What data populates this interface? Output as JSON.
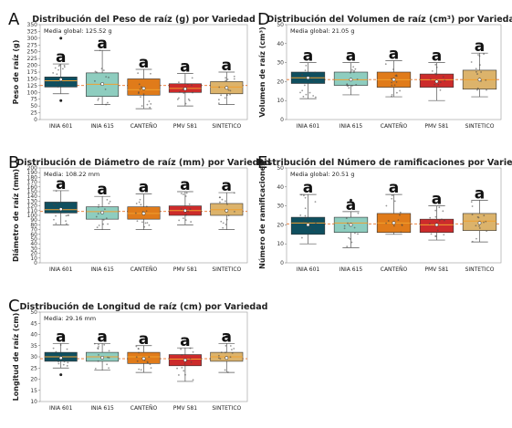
{
  "figure_colors": {
    "INIA 601": "#0f4f5f",
    "INIA 615": "#8ecdbf",
    "CANTEÑO": "#e07b1a",
    "PMV 581": "#cc2b2b",
    "SINTETICO": "#dcb36b",
    "reference_line": "#e8732a"
  },
  "chart_data": [
    {
      "type": "box",
      "panel_letter": "A",
      "title": "Distribución del Peso de raíz (g) por Variedad",
      "ylabel": "Peso de raíz (g)",
      "ylim": [
        0,
        350
      ],
      "yticks": [
        0,
        25,
        50,
        75,
        100,
        125,
        150,
        175,
        200,
        225,
        250,
        275,
        300,
        325,
        350
      ],
      "annotation": "Media global: 125.52 g",
      "reference_line": 125.52,
      "categories": [
        "INIA 601",
        "INIA 615",
        "CANTEÑO",
        "PMV 581",
        "SINTETICO"
      ],
      "series": [
        {
          "q1": 120,
          "median": 143,
          "q3": 157,
          "whisker_low": 95,
          "whisker_high": 205,
          "mean": 148,
          "sig": "a",
          "outliers": [
            300,
            70
          ]
        },
        {
          "q1": 85,
          "median": 130,
          "q3": 172,
          "whisker_low": 55,
          "whisker_high": 255,
          "mean": 131,
          "sig": "a",
          "outliers": []
        },
        {
          "q1": 90,
          "median": 110,
          "q3": 150,
          "whisker_low": 40,
          "whisker_high": 185,
          "mean": 115,
          "sig": "a",
          "outliers": []
        },
        {
          "q1": 100,
          "median": 115,
          "q3": 132,
          "whisker_low": 50,
          "whisker_high": 170,
          "mean": 113,
          "sig": "a",
          "outliers": []
        },
        {
          "q1": 95,
          "median": 120,
          "q3": 140,
          "whisker_low": 55,
          "whisker_high": 175,
          "mean": 117,
          "sig": "a",
          "outliers": []
        }
      ]
    },
    {
      "type": "box",
      "panel_letter": "B",
      "title": "Distribución de Diámetro de raíz (mm) por Variedad",
      "ylabel": "Diámetro de raíz (mm)",
      "ylim": [
        0,
        200
      ],
      "yticks": [
        0,
        10,
        20,
        30,
        40,
        50,
        60,
        70,
        80,
        90,
        100,
        110,
        120,
        130,
        140,
        150,
        160,
        170,
        180,
        190,
        200
      ],
      "annotation": "Media: 108.22 mm",
      "reference_line": 108.22,
      "categories": [
        "INIA 601",
        "INIA 615",
        "CANTEÑO",
        "PMV 581",
        "SINTETICO"
      ],
      "series": [
        {
          "q1": 105,
          "median": 112,
          "q3": 128,
          "whisker_low": 80,
          "whisker_high": 152,
          "mean": 113,
          "sig": "a",
          "outliers": []
        },
        {
          "q1": 92,
          "median": 108,
          "q3": 118,
          "whisker_low": 70,
          "whisker_high": 140,
          "mean": 106,
          "sig": "a",
          "outliers": []
        },
        {
          "q1": 92,
          "median": 104,
          "q3": 118,
          "whisker_low": 70,
          "whisker_high": 145,
          "mean": 104,
          "sig": "a",
          "outliers": []
        },
        {
          "q1": 100,
          "median": 110,
          "q3": 120,
          "whisker_low": 80,
          "whisker_high": 150,
          "mean": 110,
          "sig": "a",
          "outliers": []
        },
        {
          "q1": 100,
          "median": 112,
          "q3": 125,
          "whisker_low": 70,
          "whisker_high": 148,
          "mean": 110,
          "sig": "a",
          "outliers": []
        }
      ]
    },
    {
      "type": "box",
      "panel_letter": "C",
      "title": "Distribución de Longitud de raíz (cm) por Variedad",
      "ylabel": "Longitud de raíz (cm)",
      "ylim": [
        10,
        50
      ],
      "yticks": [
        10,
        15,
        20,
        25,
        30,
        35,
        40,
        45,
        50
      ],
      "annotation": "Media: 29.16 mm",
      "reference_line": 29.16,
      "categories": [
        "INIA 601",
        "INIA 615",
        "CANTEÑO",
        "PMV 581",
        "SINTETICO"
      ],
      "series": [
        {
          "q1": 28,
          "median": 30,
          "q3": 32,
          "whisker_low": 25,
          "whisker_high": 36,
          "mean": 29.5,
          "sig": "a",
          "outliers": [
            22
          ]
        },
        {
          "q1": 28,
          "median": 30,
          "q3": 32,
          "whisker_low": 24,
          "whisker_high": 36,
          "mean": 29.6,
          "sig": "a",
          "outliers": []
        },
        {
          "q1": 27,
          "median": 30,
          "q3": 32,
          "whisker_low": 23,
          "whisker_high": 35,
          "mean": 29.2,
          "sig": "a",
          "outliers": []
        },
        {
          "q1": 26,
          "median": 29,
          "q3": 31,
          "whisker_low": 19,
          "whisker_high": 34,
          "mean": 28.5,
          "sig": "a",
          "outliers": []
        },
        {
          "q1": 28,
          "median": 30,
          "q3": 32,
          "whisker_low": 23,
          "whisker_high": 36,
          "mean": 29.5,
          "sig": "a",
          "outliers": [
            39
          ]
        }
      ]
    },
    {
      "type": "box",
      "panel_letter": "D",
      "title": "Distribución del Volumen de raíz (cm³) por Variedad",
      "ylabel": "Volumen de raíz (cm³)",
      "ylim": [
        0,
        50
      ],
      "yticks": [
        0,
        10,
        20,
        30,
        40,
        50
      ],
      "annotation": "Media global: 21.05 g",
      "reference_line": 21.05,
      "categories": [
        "INIA 601",
        "INIA 615",
        "CANTEÑO",
        "PMV 581",
        "SINTETICO"
      ],
      "series": [
        {
          "q1": 19,
          "median": 22,
          "q3": 25,
          "whisker_low": 11,
          "whisker_high": 30,
          "mean": 22,
          "sig": "a",
          "outliers": []
        },
        {
          "q1": 18,
          "median": 21,
          "q3": 25,
          "whisker_low": 13,
          "whisker_high": 30,
          "mean": 21,
          "sig": "a",
          "outliers": []
        },
        {
          "q1": 17,
          "median": 21,
          "q3": 25,
          "whisker_low": 12,
          "whisker_high": 31,
          "mean": 21,
          "sig": "a",
          "outliers": []
        },
        {
          "q1": 17,
          "median": 21,
          "q3": 24,
          "whisker_low": 10,
          "whisker_high": 30,
          "mean": 20,
          "sig": "a",
          "outliers": []
        },
        {
          "q1": 16,
          "median": 21,
          "q3": 26,
          "whisker_low": 12,
          "whisker_high": 35,
          "mean": 21,
          "sig": "a",
          "outliers": []
        }
      ]
    },
    {
      "type": "box",
      "panel_letter": "E",
      "title": "Distribución del Número de ramificaciones por Variedad",
      "ylabel": "Número de ramificaciones",
      "ylim": [
        0,
        50
      ],
      "yticks": [
        0,
        10,
        20,
        30,
        40,
        50
      ],
      "annotation": "Media global: 20.51 g",
      "reference_line": 20.51,
      "categories": [
        "INIA 601",
        "INIA 615",
        "CANTEÑO",
        "PMV 581",
        "SINTETICO"
      ],
      "series": [
        {
          "q1": 15,
          "median": 21,
          "q3": 24,
          "whisker_low": 10,
          "whisker_high": 36,
          "mean": 20,
          "sig": "a",
          "outliers": []
        },
        {
          "q1": 16,
          "median": 21,
          "q3": 24,
          "whisker_low": 8,
          "whisker_high": 27,
          "mean": 20,
          "sig": "a",
          "outliers": [
            33
          ]
        },
        {
          "q1": 16,
          "median": 21,
          "q3": 26,
          "whisker_low": 15,
          "whisker_high": 36,
          "mean": 21,
          "sig": "a",
          "outliers": []
        },
        {
          "q1": 16,
          "median": 20,
          "q3": 23,
          "whisker_low": 12,
          "whisker_high": 30,
          "mean": 20,
          "sig": "a",
          "outliers": []
        },
        {
          "q1": 17,
          "median": 22,
          "q3": 26,
          "whisker_low": 11,
          "whisker_high": 33,
          "mean": 21,
          "sig": "a",
          "outliers": []
        }
      ]
    }
  ]
}
